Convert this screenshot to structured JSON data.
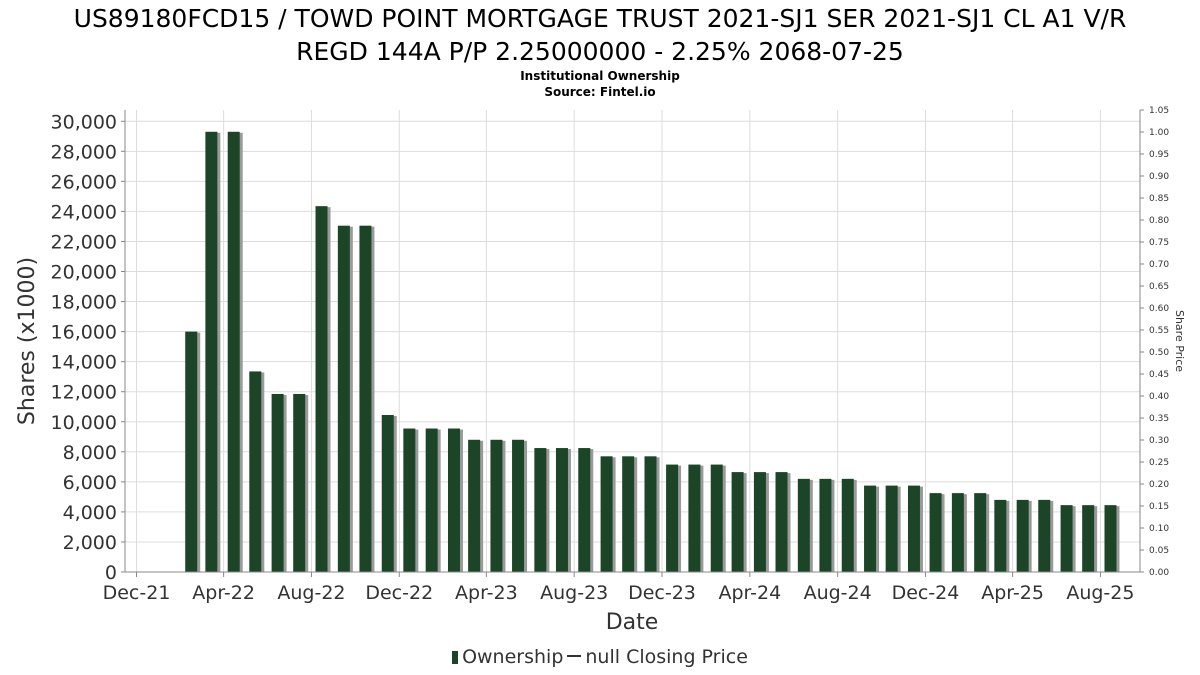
{
  "title_line1": "US89180FCD15 / TOWD POINT MORTGAGE TRUST 2021-SJ1 SER 2021-SJ1 CL A1 V/R",
  "title_line2": "REGD 144A P/P 2.25000000 - 2.25% 2068-07-25",
  "subtitle1": "Institutional Ownership",
  "subtitle2": "Source: Fintel.io",
  "legend": {
    "ownership": "Ownership",
    "closing_price": "null Closing Price"
  },
  "colors": {
    "bar": "#1c4527",
    "bar_shadow": "#9a9a9a",
    "grid": "#dddddd",
    "axis": "#888888"
  },
  "chart_data": {
    "type": "bar",
    "xlabel": "Date",
    "ylabel": "Shares (x1000)",
    "y2label": "Share Price",
    "ylim": [
      0,
      30000
    ],
    "y2lim": [
      0,
      1.05
    ],
    "grid": true,
    "legend_position": "bottom",
    "y_ticks": [
      "0",
      "2,000",
      "4,000",
      "6,000",
      "8,000",
      "10,000",
      "12,000",
      "14,000",
      "16,000",
      "18,000",
      "20,000",
      "22,000",
      "24,000",
      "26,000",
      "28,000",
      "30,000"
    ],
    "y_tick_values": [
      0,
      2000,
      4000,
      6000,
      8000,
      10000,
      12000,
      14000,
      16000,
      18000,
      20000,
      22000,
      24000,
      26000,
      28000,
      30000
    ],
    "y2_ticks": [
      "0.00",
      "0.05",
      "0.10",
      "0.15",
      "0.20",
      "0.25",
      "0.30",
      "0.35",
      "0.40",
      "0.45",
      "0.50",
      "0.55",
      "0.60",
      "0.65",
      "0.70",
      "0.75",
      "0.80",
      "0.85",
      "0.90",
      "0.95",
      "1.00",
      "1.05"
    ],
    "y2_tick_values": [
      0,
      0.05,
      0.1,
      0.15,
      0.2,
      0.25,
      0.3,
      0.35,
      0.4,
      0.45,
      0.5,
      0.55,
      0.6,
      0.65,
      0.7,
      0.75,
      0.8,
      0.85,
      0.9,
      0.95,
      1.0,
      1.05
    ],
    "x_ticks": [
      "Dec-21",
      "Apr-22",
      "Aug-22",
      "Dec-22",
      "Apr-23",
      "Aug-23",
      "Dec-23",
      "Apr-24",
      "Aug-24",
      "Dec-24",
      "Apr-25",
      "Aug-25"
    ],
    "x_tick_values": [
      "2021-12-01",
      "2022-04-01",
      "2022-08-01",
      "2022-12-01",
      "2023-04-01",
      "2023-08-01",
      "2023-12-01",
      "2024-04-01",
      "2024-08-01",
      "2024-12-01",
      "2025-04-01",
      "2025-08-01"
    ],
    "x_range": [
      "2021-11-15",
      "2025-09-25"
    ],
    "series": [
      {
        "name": "Ownership",
        "points": [
          {
            "x": "2022-02-15",
            "y": 16000
          },
          {
            "x": "2022-03-15",
            "y": 29300
          },
          {
            "x": "2022-04-15",
            "y": 29300
          },
          {
            "x": "2022-05-15",
            "y": 13350
          },
          {
            "x": "2022-06-15",
            "y": 11850
          },
          {
            "x": "2022-07-15",
            "y": 11850
          },
          {
            "x": "2022-08-15",
            "y": 24350
          },
          {
            "x": "2022-09-15",
            "y": 23050
          },
          {
            "x": "2022-10-15",
            "y": 23050
          },
          {
            "x": "2022-11-15",
            "y": 10450
          },
          {
            "x": "2022-12-15",
            "y": 9550
          },
          {
            "x": "2023-01-15",
            "y": 9550
          },
          {
            "x": "2023-02-15",
            "y": 9550
          },
          {
            "x": "2023-03-15",
            "y": 8800
          },
          {
            "x": "2023-04-15",
            "y": 8800
          },
          {
            "x": "2023-05-15",
            "y": 8800
          },
          {
            "x": "2023-06-15",
            "y": 8250
          },
          {
            "x": "2023-07-15",
            "y": 8250
          },
          {
            "x": "2023-08-15",
            "y": 8250
          },
          {
            "x": "2023-09-15",
            "y": 7700
          },
          {
            "x": "2023-10-15",
            "y": 7700
          },
          {
            "x": "2023-11-15",
            "y": 7700
          },
          {
            "x": "2023-12-15",
            "y": 7150
          },
          {
            "x": "2024-01-15",
            "y": 7150
          },
          {
            "x": "2024-02-15",
            "y": 7150
          },
          {
            "x": "2024-03-15",
            "y": 6650
          },
          {
            "x": "2024-04-15",
            "y": 6650
          },
          {
            "x": "2024-05-15",
            "y": 6650
          },
          {
            "x": "2024-06-15",
            "y": 6200
          },
          {
            "x": "2024-07-15",
            "y": 6200
          },
          {
            "x": "2024-08-15",
            "y": 6200
          },
          {
            "x": "2024-09-15",
            "y": 5750
          },
          {
            "x": "2024-10-15",
            "y": 5750
          },
          {
            "x": "2024-11-15",
            "y": 5750
          },
          {
            "x": "2024-12-15",
            "y": 5250
          },
          {
            "x": "2025-01-15",
            "y": 5250
          },
          {
            "x": "2025-02-15",
            "y": 5250
          },
          {
            "x": "2025-03-15",
            "y": 4800
          },
          {
            "x": "2025-04-15",
            "y": 4800
          },
          {
            "x": "2025-05-15",
            "y": 4800
          },
          {
            "x": "2025-06-15",
            "y": 4450
          },
          {
            "x": "2025-07-15",
            "y": 4450
          },
          {
            "x": "2025-08-15",
            "y": 4450
          }
        ]
      }
    ]
  }
}
